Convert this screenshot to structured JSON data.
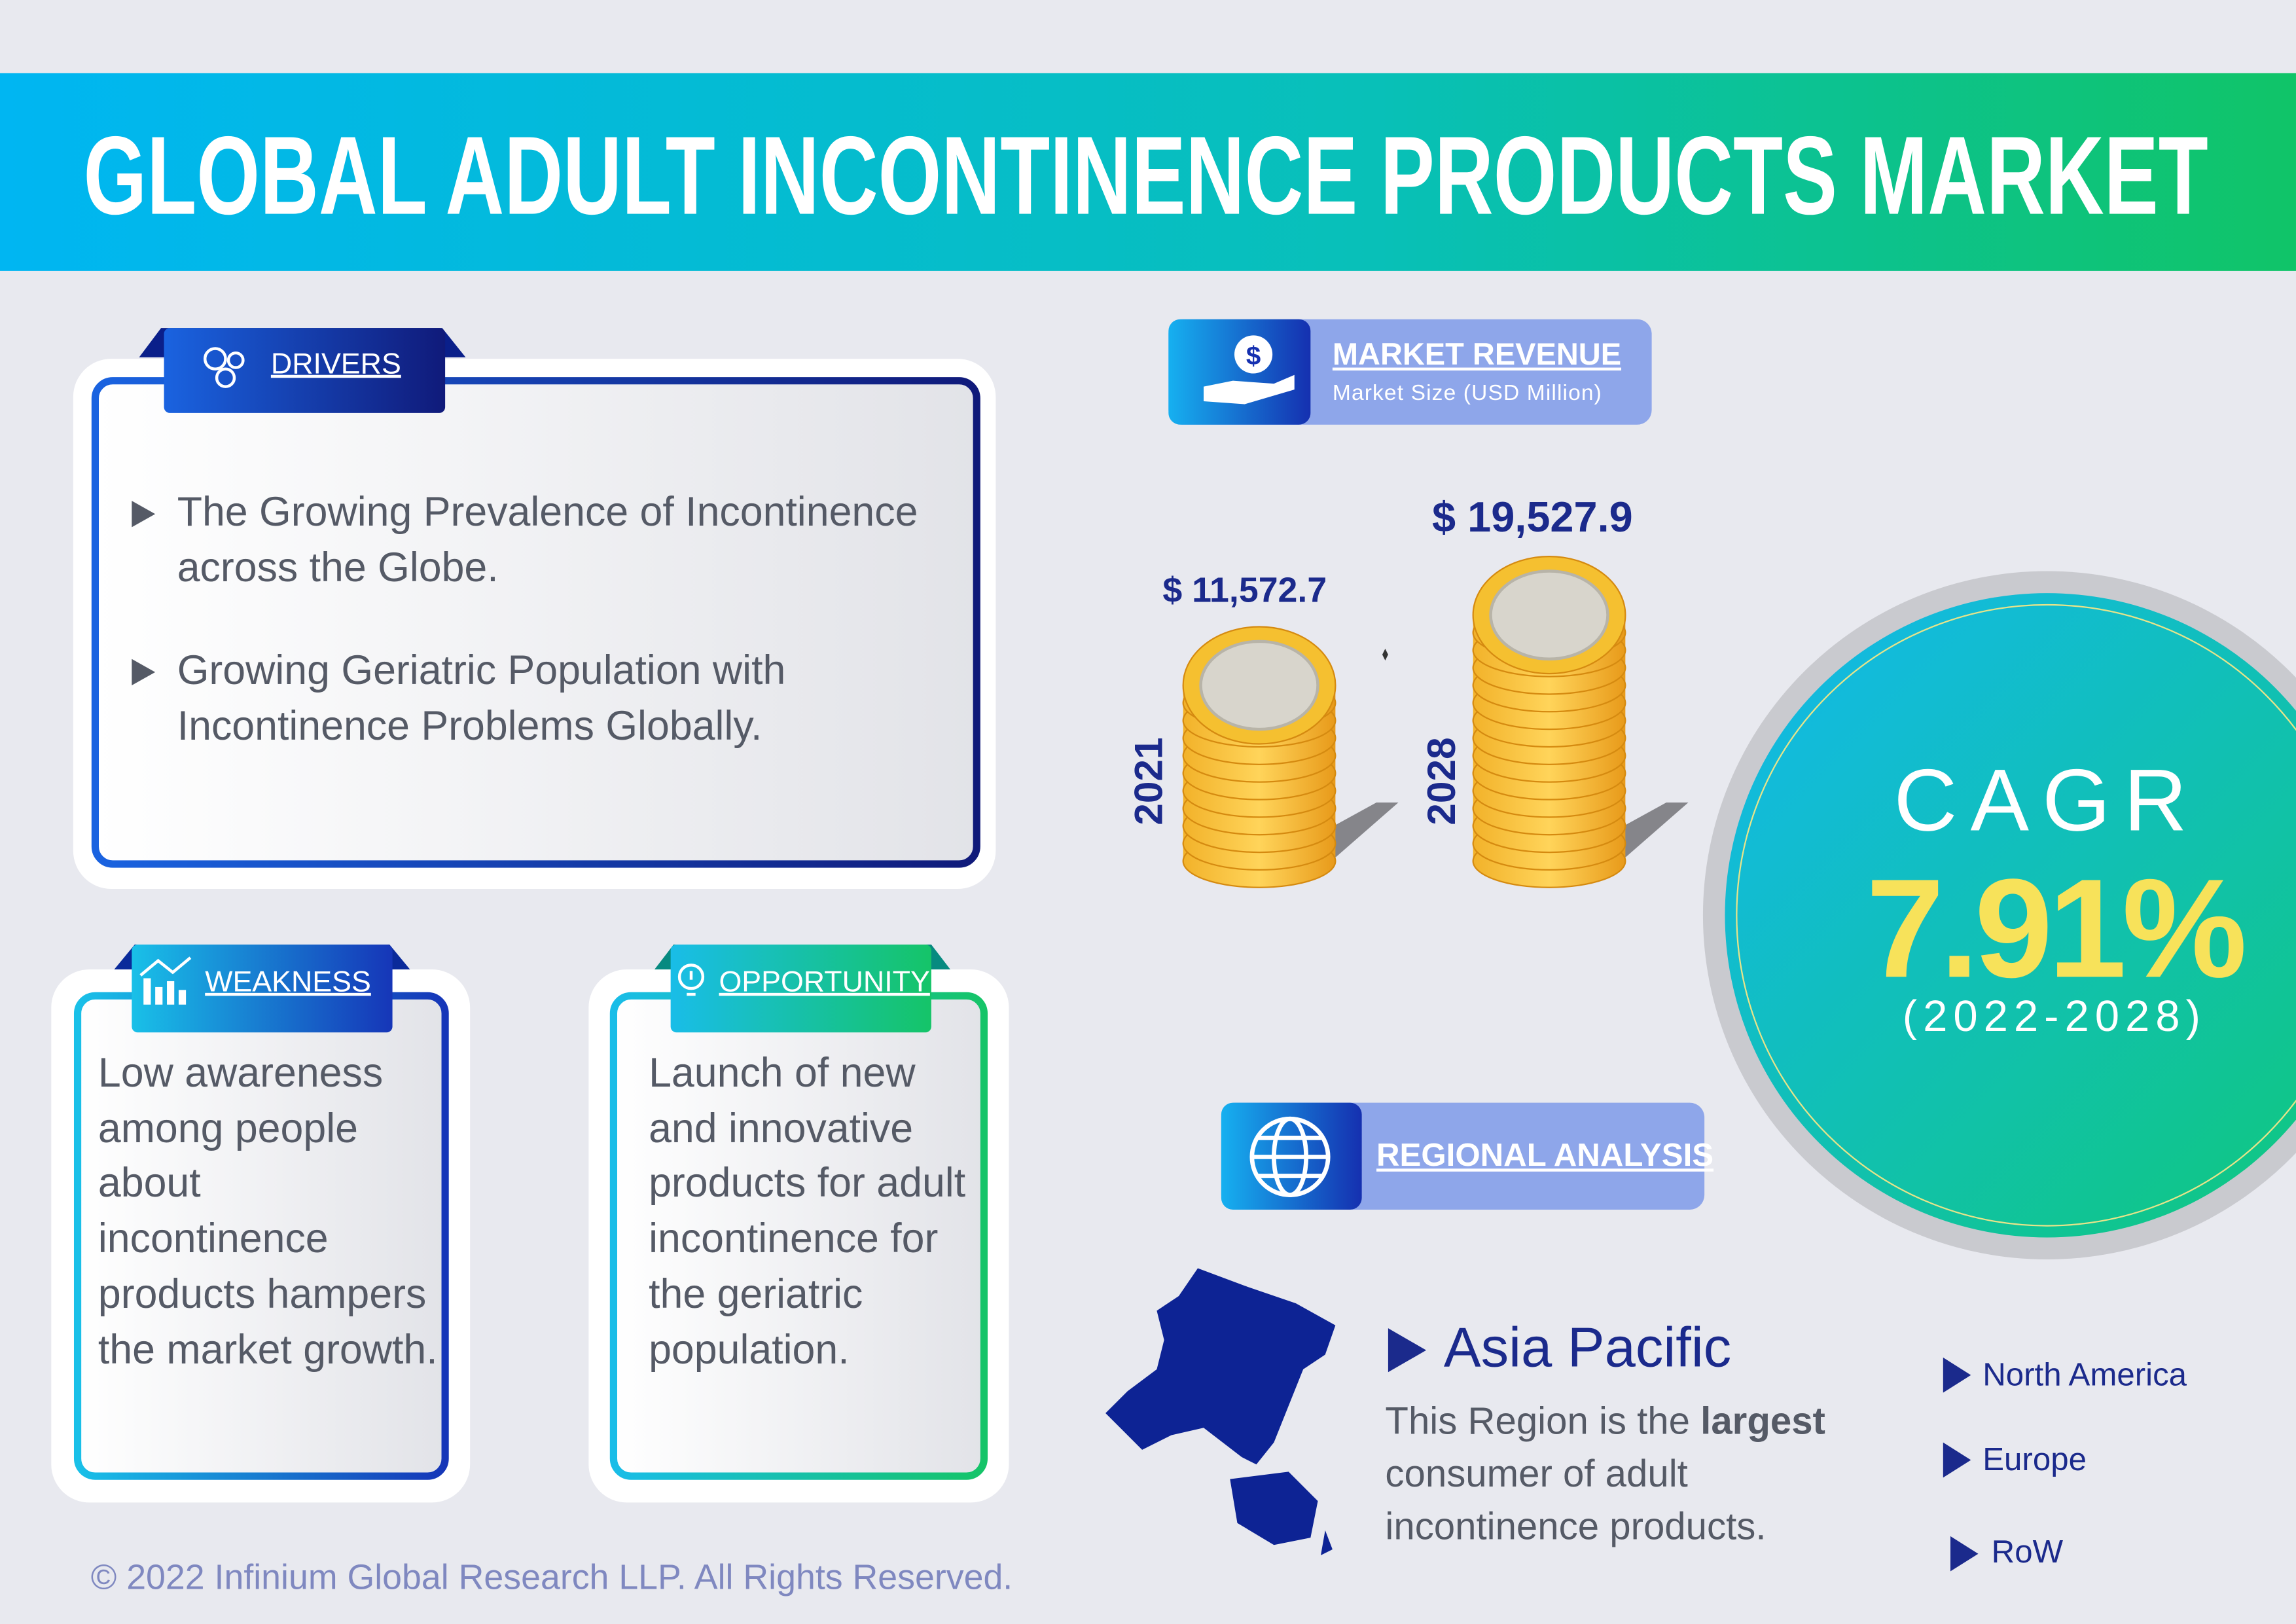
{
  "header": {
    "title": "GLOBAL ADULT INCONTINENCE PRODUCTS MARKET"
  },
  "drivers": {
    "title": "DRIVERS",
    "items": [
      "The Growing Prevalence of Incontinence across the Globe.",
      "Growing Geriatric Population with Incontinence Problems Globally."
    ]
  },
  "weakness": {
    "title": "WEAKNESS",
    "text": "Low awareness among people about incontinence products hampers the market growth."
  },
  "opportunity": {
    "title": "OPPORTUNITY",
    "text": "Launch of new and innovative products for adult incontinence for the geriatric population."
  },
  "market_revenue": {
    "title": "MARKET REVENUE",
    "subtitle": "Market Size (USD Million)",
    "entries": [
      {
        "year": "2021",
        "value": "$ 11,572.7"
      },
      {
        "year": "2028",
        "value": "$ 19,527.9"
      }
    ]
  },
  "cagr": {
    "label": "CAGR",
    "value": "7.91%",
    "period": "(2022-2028)"
  },
  "regional_analysis": {
    "title": "REGIONAL ANALYSIS",
    "leader": "Asia Pacific",
    "description": [
      "This Region is the ",
      "largest",
      " consumer of adult incontinence products."
    ],
    "others": [
      "North America",
      "Europe",
      "RoW"
    ]
  },
  "footer": {
    "text": "© 2022 Infinium Global Research LLP. All Rights Reserved."
  }
}
